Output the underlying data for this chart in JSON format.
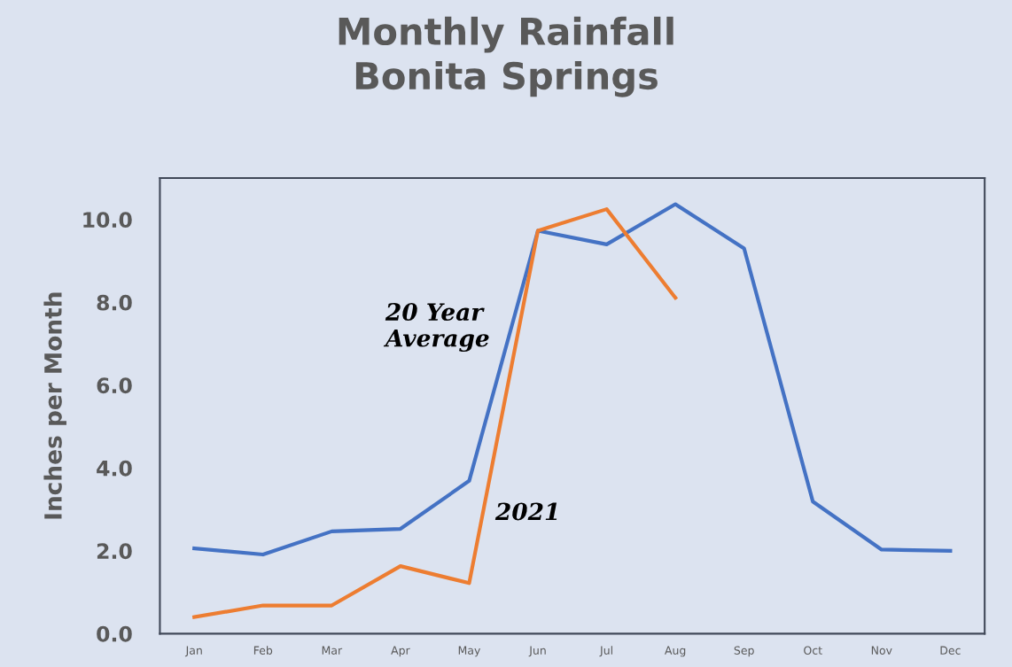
{
  "chart_data": {
    "type": "line",
    "title": "Monthly Rainfall\nBonita Springs",
    "ylabel": "Inches per Month",
    "categories": [
      "Jan",
      "Feb",
      "Mar",
      "Apr",
      "May",
      "Jun",
      "Jul",
      "Aug",
      "Sep",
      "Oct",
      "Nov",
      "Dec"
    ],
    "series": [
      {
        "name": "20 Year Average",
        "color": "#4472c4",
        "values": [
          2.06,
          1.91,
          2.47,
          2.53,
          3.69,
          9.73,
          9.4,
          10.37,
          9.3,
          3.19,
          2.03,
          2.0
        ]
      },
      {
        "name": "2021",
        "color": "#ed7d31",
        "values": [
          0.4,
          0.68,
          0.68,
          1.63,
          1.22,
          9.73,
          10.25,
          8.11,
          null,
          null,
          null,
          null
        ]
      }
    ],
    "ylim": [
      0,
      11
    ],
    "yticks": [
      {
        "value": 0,
        "label": "0.0"
      },
      {
        "value": 2,
        "label": "2.0"
      },
      {
        "value": 4,
        "label": "4.0"
      },
      {
        "value": 6,
        "label": "6.0"
      },
      {
        "value": 8,
        "label": "8.0"
      },
      {
        "value": 10,
        "label": "10.0"
      }
    ],
    "grid": false,
    "legend": false
  }
}
